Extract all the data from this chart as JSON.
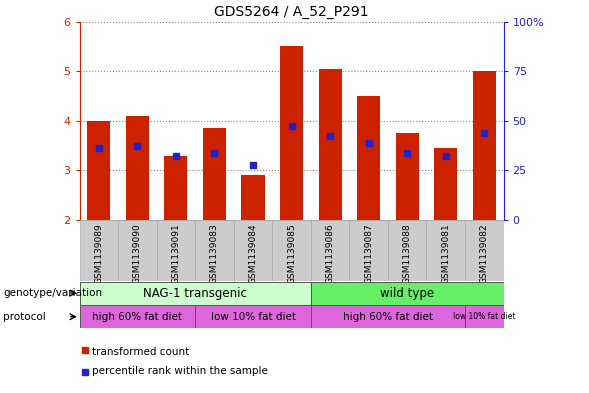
{
  "title": "GDS5264 / A_52_P291",
  "samples": [
    "GSM1139089",
    "GSM1139090",
    "GSM1139091",
    "GSM1139083",
    "GSM1139084",
    "GSM1139085",
    "GSM1139086",
    "GSM1139087",
    "GSM1139088",
    "GSM1139081",
    "GSM1139082"
  ],
  "red_bars": [
    4.0,
    4.1,
    3.3,
    3.85,
    2.9,
    5.5,
    5.05,
    4.5,
    3.75,
    3.45,
    5.0
  ],
  "blue_dots": [
    3.45,
    3.5,
    3.3,
    3.35,
    3.12,
    3.9,
    3.7,
    3.55,
    3.35,
    3.3,
    3.75
  ],
  "ymin": 2.0,
  "ymax": 6.0,
  "yticks": [
    2,
    3,
    4,
    5,
    6
  ],
  "right_yticks": [
    0,
    25,
    50,
    75,
    100
  ],
  "bar_color": "#cc2200",
  "dot_color": "#2222cc",
  "left_tick_color": "#cc2200",
  "right_tick_color": "#2222cc",
  "grid_color": "#888888",
  "genotype_nag_label": "NAG-1 transgenic",
  "genotype_wt_label": "wild type",
  "protocol_high_label": "high 60% fat diet",
  "protocol_low_label": "low 10% fat diet",
  "nag_color": "#ccffcc",
  "wt_color": "#66ee66",
  "protocol_color": "#dd66dd",
  "header_bg": "#cccccc",
  "legend_tc_label": "transformed count",
  "legend_pr_label": "percentile rank within the sample"
}
